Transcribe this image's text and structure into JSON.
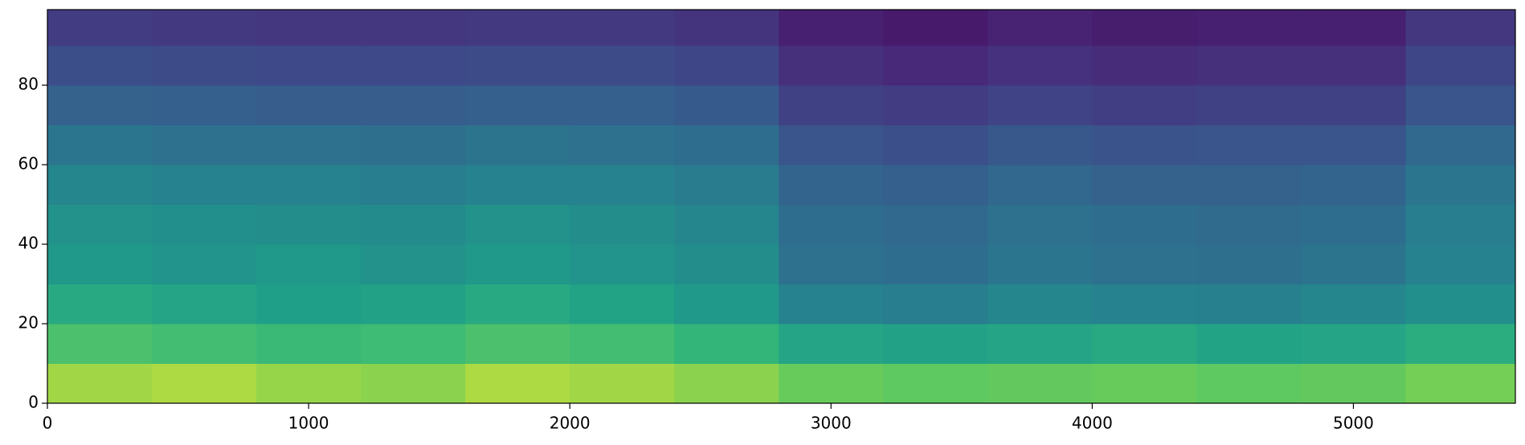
{
  "chart_data": {
    "type": "heatmap",
    "colormap": "viridis",
    "zlim": [
      0,
      1
    ],
    "x_edges": [
      0,
      400,
      800,
      1200,
      1600,
      2000,
      2400,
      2800,
      3200,
      3600,
      4000,
      4400,
      4800,
      5200,
      5620
    ],
    "y_edges": [
      0,
      10,
      20,
      30,
      40,
      50,
      60,
      70,
      80,
      90,
      99
    ],
    "z": [
      [
        0.92,
        0.93,
        0.91,
        0.9,
        0.93,
        0.92,
        0.9,
        0.86,
        0.84,
        0.85,
        0.86,
        0.84,
        0.85,
        0.88
      ],
      [
        0.8,
        0.78,
        0.76,
        0.77,
        0.8,
        0.78,
        0.74,
        0.66,
        0.64,
        0.66,
        0.68,
        0.65,
        0.66,
        0.7
      ],
      [
        0.68,
        0.66,
        0.63,
        0.64,
        0.68,
        0.65,
        0.6,
        0.5,
        0.48,
        0.52,
        0.5,
        0.49,
        0.52,
        0.56
      ],
      [
        0.6,
        0.58,
        0.6,
        0.57,
        0.6,
        0.58,
        0.55,
        0.42,
        0.4,
        0.44,
        0.42,
        0.41,
        0.43,
        0.5
      ],
      [
        0.57,
        0.56,
        0.55,
        0.54,
        0.57,
        0.55,
        0.52,
        0.4,
        0.38,
        0.42,
        0.4,
        0.39,
        0.4,
        0.48
      ],
      [
        0.52,
        0.5,
        0.5,
        0.48,
        0.5,
        0.5,
        0.47,
        0.36,
        0.34,
        0.37,
        0.35,
        0.35,
        0.36,
        0.44
      ],
      [
        0.44,
        0.42,
        0.42,
        0.41,
        0.43,
        0.42,
        0.4,
        0.3,
        0.28,
        0.31,
        0.29,
        0.3,
        0.3,
        0.38
      ],
      [
        0.35,
        0.34,
        0.33,
        0.33,
        0.34,
        0.34,
        0.32,
        0.22,
        0.2,
        0.23,
        0.21,
        0.22,
        0.22,
        0.3
      ],
      [
        0.27,
        0.26,
        0.25,
        0.25,
        0.26,
        0.26,
        0.24,
        0.15,
        0.13,
        0.16,
        0.14,
        0.15,
        0.15,
        0.24
      ],
      [
        0.2,
        0.19,
        0.18,
        0.18,
        0.19,
        0.19,
        0.17,
        0.1,
        0.08,
        0.11,
        0.09,
        0.1,
        0.1,
        0.18
      ]
    ],
    "xlim": [
      0,
      5620
    ],
    "ylim": [
      0,
      99
    ],
    "xticks": [
      0,
      1000,
      2000,
      3000,
      4000,
      5000
    ],
    "yticks": [
      0,
      20,
      40,
      60,
      80
    ]
  }
}
